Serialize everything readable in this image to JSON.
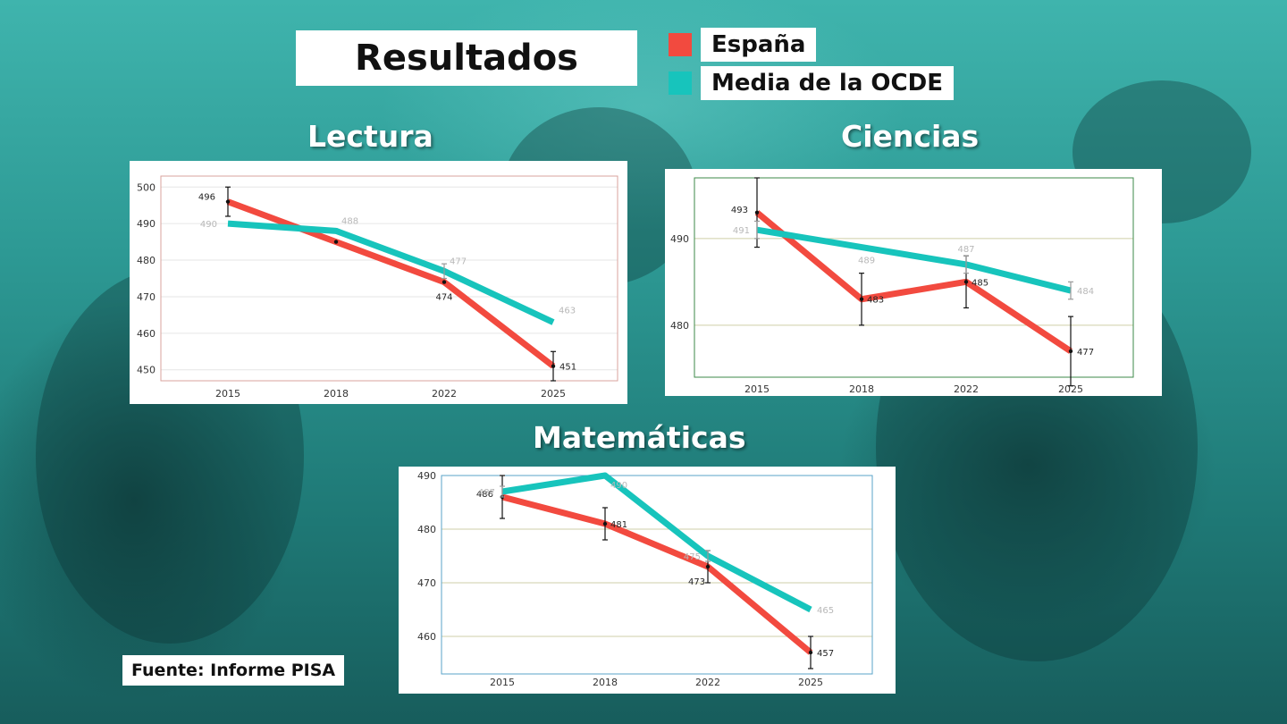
{
  "title": "Resultados",
  "legend": [
    {
      "label": "España",
      "color": "#f24a3f"
    },
    {
      "label": "Media de la OCDE",
      "color": "#17c4bc"
    }
  ],
  "source": "Fuente: Informe PISA",
  "colors": {
    "spain": "#f24a3f",
    "oecd": "#17c4bc",
    "oecd_label": "#b8b8b8"
  },
  "chart_data": [
    {
      "id": "lectura",
      "type": "line",
      "title": "Lectura",
      "x": [
        "2015",
        "2018",
        "2022",
        "2025"
      ],
      "ylim": [
        447,
        503
      ],
      "yticks": [
        450,
        460,
        470,
        480,
        490,
        500
      ],
      "frame_color": "#d9a39d",
      "grid_color": "#e6e6e6",
      "series": [
        {
          "name": "España",
          "values": [
            496,
            485,
            474,
            451
          ],
          "labels": [
            "496",
            "",
            "474",
            "451"
          ],
          "errors": [
            4,
            null,
            null,
            4
          ]
        },
        {
          "name": "Media de la OCDE",
          "values": [
            490,
            488,
            477,
            463
          ],
          "labels": [
            "490",
            "488",
            "477",
            "463"
          ],
          "errors": [
            null,
            null,
            2,
            null
          ]
        }
      ]
    },
    {
      "id": "ciencias",
      "type": "line",
      "title": "Ciencias",
      "x": [
        "2015",
        "2018",
        "2022",
        "2025"
      ],
      "ylim": [
        474,
        497
      ],
      "yticks": [
        480,
        490
      ],
      "frame_color": "#3e8a4a",
      "grid_color": "#cfcfa8",
      "series": [
        {
          "name": "España",
          "values": [
            493,
            483,
            485,
            477
          ],
          "labels": [
            "493",
            "483",
            "485",
            "477"
          ],
          "errors": [
            4,
            3,
            3,
            4
          ]
        },
        {
          "name": "Media de la OCDE",
          "values": [
            491,
            489,
            487,
            484
          ],
          "labels": [
            "491",
            "489",
            "487",
            "484"
          ],
          "errors": [
            1,
            null,
            1,
            1
          ]
        }
      ]
    },
    {
      "id": "matematicas",
      "type": "line",
      "title": "Matemáticas",
      "x": [
        "2015",
        "2018",
        "2022",
        "2025"
      ],
      "ylim": [
        453,
        490
      ],
      "yticks": [
        460,
        470,
        480,
        490
      ],
      "frame_color": "#5aa3c9",
      "grid_color": "#cfcfa8",
      "series": [
        {
          "name": "España",
          "values": [
            486,
            481,
            473,
            457
          ],
          "labels": [
            "486",
            "481",
            "473",
            "457"
          ],
          "errors": [
            4,
            3,
            3,
            3
          ]
        },
        {
          "name": "Media de la OCDE",
          "values": [
            487,
            490,
            475,
            465
          ],
          "labels": [
            "487",
            "490",
            "475",
            "465"
          ],
          "errors": [
            1,
            null,
            1,
            null
          ]
        }
      ]
    }
  ]
}
